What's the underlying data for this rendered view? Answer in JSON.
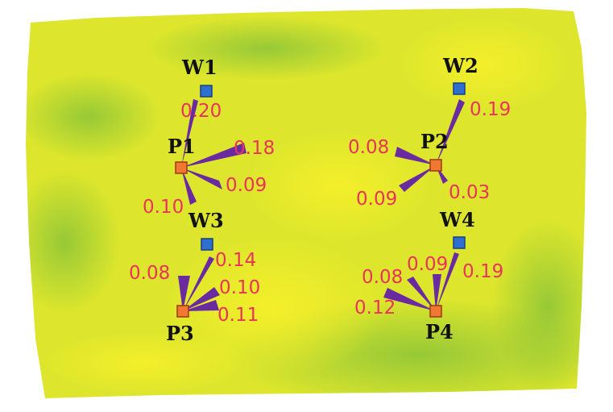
{
  "colors": {
    "field_base": "#dce52a",
    "field_green": "#8cc63f",
    "field_yellow": "#f1ee2c",
    "edge": "#6a2aa0",
    "value_text": "#e8345a",
    "well_fill": "#2e6fd0",
    "well_stroke": "#1a3f82",
    "point_fill": "#f07830",
    "point_stroke": "#9a3a10"
  },
  "nodes": [
    {
      "id": "W1",
      "label": "W1",
      "kind": "well"
    },
    {
      "id": "W2",
      "label": "W2",
      "kind": "well"
    },
    {
      "id": "W3",
      "label": "W3",
      "kind": "well"
    },
    {
      "id": "W4",
      "label": "W4",
      "kind": "well"
    },
    {
      "id": "P1",
      "label": "P1",
      "kind": "point"
    },
    {
      "id": "P2",
      "label": "P2",
      "kind": "point"
    },
    {
      "id": "P3",
      "label": "P3",
      "kind": "point"
    },
    {
      "id": "P4",
      "label": "P4",
      "kind": "point"
    }
  ],
  "edges": [
    {
      "from": "P1",
      "to": "W1",
      "value": "0.20"
    },
    {
      "from": "P1",
      "to": "E1a",
      "value": "0.18"
    },
    {
      "from": "P1",
      "to": "E1b",
      "value": "0.09"
    },
    {
      "from": "P1",
      "to": "E1c",
      "value": "0.10"
    },
    {
      "from": "P2",
      "to": "W2",
      "value": "0.19"
    },
    {
      "from": "P2",
      "to": "E2a",
      "value": "0.08"
    },
    {
      "from": "P2",
      "to": "E2b",
      "value": "0.09"
    },
    {
      "from": "P2",
      "to": "E2c",
      "value": "0.03"
    },
    {
      "from": "P3",
      "to": "W3",
      "value": "0.14"
    },
    {
      "from": "P3",
      "to": "E3a",
      "value": "0.08"
    },
    {
      "from": "P3",
      "to": "E3b",
      "value": "0.10"
    },
    {
      "from": "P3",
      "to": "E3c",
      "value": "0.11"
    },
    {
      "from": "P4",
      "to": "W4",
      "value": "0.19"
    },
    {
      "from": "P4",
      "to": "E4a",
      "value": "0.09"
    },
    {
      "from": "P4",
      "to": "E4b",
      "value": "0.08"
    },
    {
      "from": "P4",
      "to": "E4c",
      "value": "0.12"
    }
  ]
}
